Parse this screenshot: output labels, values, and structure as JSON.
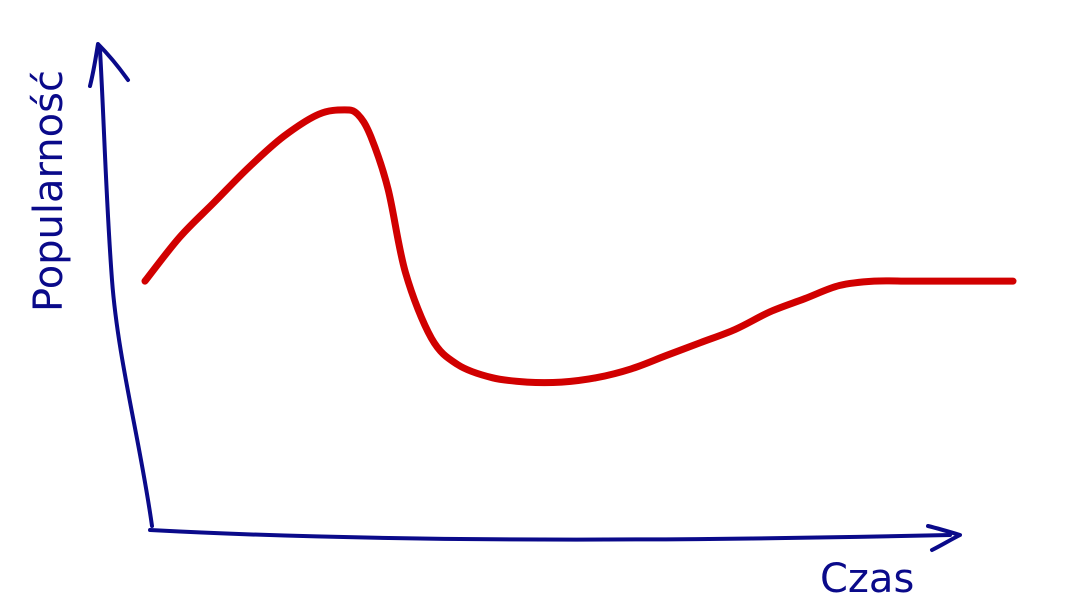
{
  "chart_data": {
    "type": "line",
    "xlabel": "Czas",
    "ylabel": "Popularność",
    "x_ticks": [],
    "y_ticks": [],
    "grid": false,
    "legend": "none",
    "xlim": [
      0,
      100
    ],
    "ylim": [
      0,
      100
    ],
    "series": [
      {
        "color": "#d10000",
        "x": [
          0,
          4,
          8,
          12,
          16,
          20,
          23,
          24.5,
          26,
          28,
          30,
          33,
          36,
          40,
          44,
          48,
          52,
          56,
          60,
          64,
          68,
          72,
          76,
          80,
          84,
          88,
          92,
          96,
          100
        ],
        "y": [
          51,
          61,
          69,
          77,
          84,
          89,
          90,
          89,
          84,
          72,
          53,
          38,
          32,
          29,
          28,
          28,
          29,
          31,
          34,
          37,
          40,
          44,
          47,
          50,
          51,
          51,
          51,
          51,
          51
        ]
      }
    ]
  },
  "colors": {
    "axis": "#0a0a8a",
    "series": "#d10000",
    "background": "#ffffff"
  }
}
